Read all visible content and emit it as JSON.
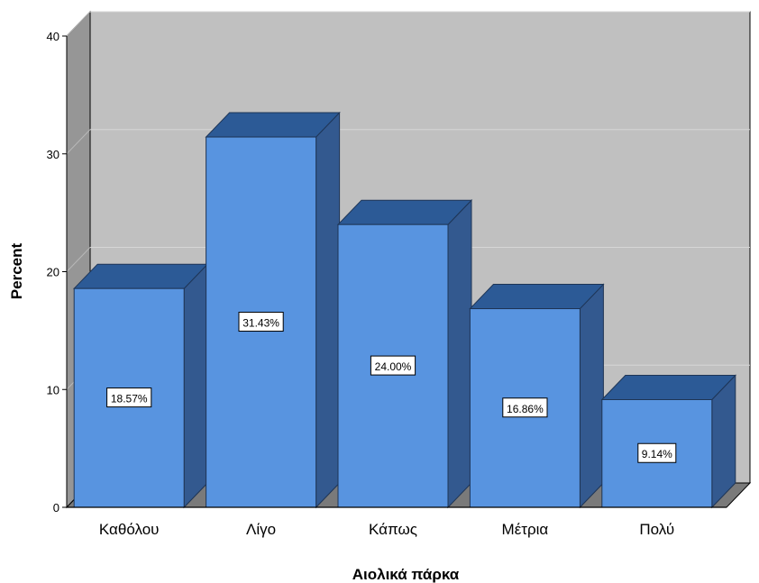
{
  "chart_data": {
    "type": "bar",
    "categories": [
      "Καθόλου",
      "Λίγο",
      "Κάπως",
      "Μέτρια",
      "Πολύ"
    ],
    "values": [
      18.57,
      31.43,
      24.0,
      16.86,
      9.14
    ],
    "data_labels": [
      "18.57%",
      "31.43%",
      "24.00%",
      "16.86%",
      "9.14%"
    ],
    "xlabel": "Αιολικά πάρκα",
    "ylabel": "Percent",
    "ylim": [
      0,
      40
    ],
    "yticks": [
      0,
      10,
      20,
      30,
      40
    ],
    "grid": true,
    "style": "3d"
  },
  "colors": {
    "bar_front": "#5894e0",
    "bar_top": "#2c5a96",
    "bar_side": "#33598f",
    "back_wall": "#c0c0c0",
    "side_wall": "#969696",
    "floor": "#7a7a7a",
    "gridline": "#d6d6d6"
  }
}
